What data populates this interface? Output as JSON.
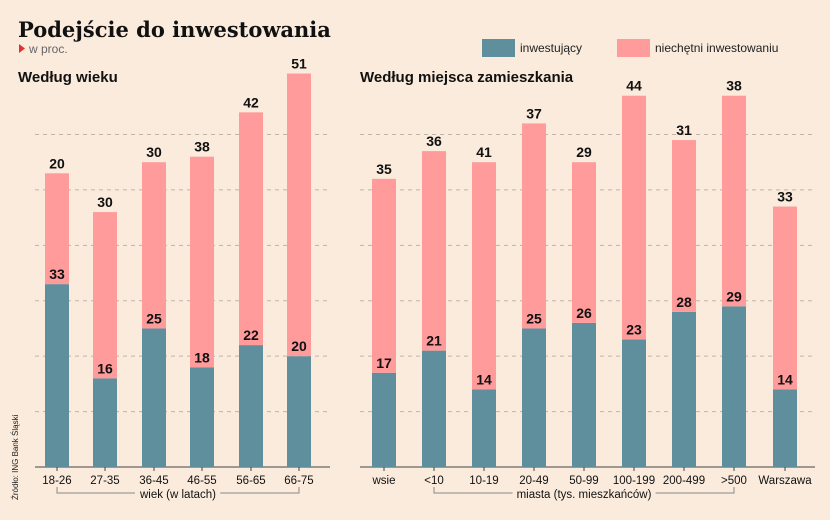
{
  "title": "Podejście do inwestowania",
  "subtitle": "w proc.",
  "source": "Źródło: ING Bank Śląski",
  "legend": [
    {
      "name": "inwestujący",
      "color": "#5f8f9c"
    },
    {
      "name": "niechętni inwestowaniu",
      "color": "#ff9b9b"
    }
  ],
  "chart_data": [
    {
      "type": "bar",
      "stacked": true,
      "title": "Według wieku",
      "xlabel": "wiek (w latach)",
      "categories": [
        "18-26",
        "27-35",
        "36-45",
        "46-55",
        "56-65",
        "66-75"
      ],
      "series": [
        {
          "name": "inwestujący",
          "values": [
            33,
            16,
            25,
            18,
            22,
            20
          ]
        },
        {
          "name": "niechętni inwestowaniu",
          "values": [
            20,
            30,
            30,
            38,
            42,
            51
          ]
        }
      ],
      "ylim": [
        0,
        72
      ],
      "grid": true
    },
    {
      "type": "bar",
      "stacked": true,
      "title": "Według miejsca zamieszkania",
      "xlabel": "miasta (tys. mieszkańców)",
      "categories": [
        "wsie",
        "<10",
        "10-19",
        "20-49",
        "50-99",
        "100-199",
        "200-499",
        ">500",
        "Warszawa"
      ],
      "series": [
        {
          "name": "inwestujący",
          "values": [
            17,
            21,
            14,
            25,
            26,
            23,
            28,
            29,
            14
          ]
        },
        {
          "name": "niechętni inwestowaniu",
          "values": [
            35,
            36,
            41,
            37,
            29,
            44,
            31,
            38,
            33
          ]
        }
      ],
      "ylim": [
        0,
        72
      ],
      "grid": true
    }
  ]
}
